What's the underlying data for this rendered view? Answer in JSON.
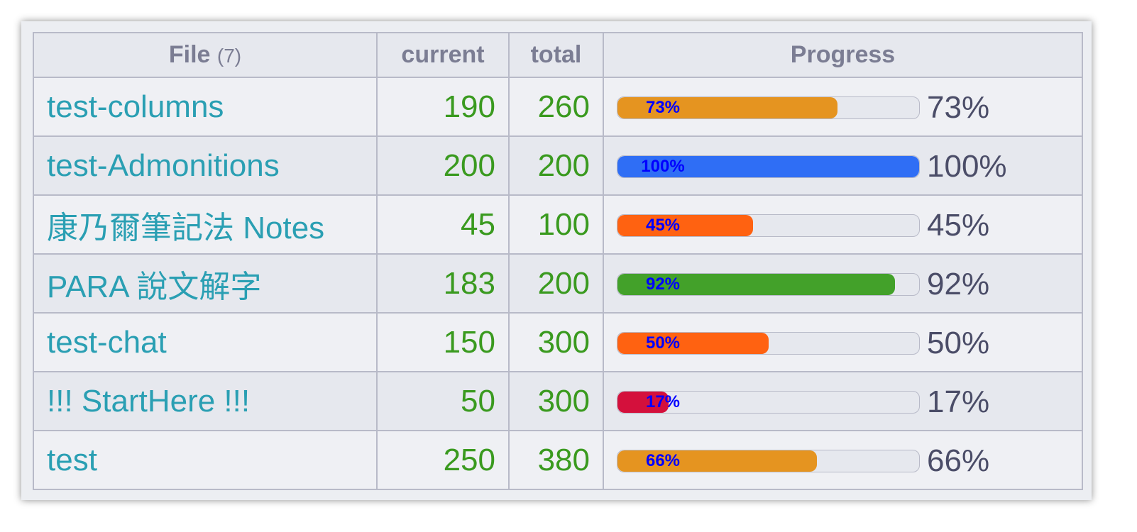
{
  "header": {
    "file": "File",
    "count": "(7)",
    "current": "current",
    "total": "total",
    "progress": "Progress"
  },
  "rows": [
    {
      "file": "test-columns",
      "current": 190,
      "total": 260,
      "progress": {
        "value": 73,
        "label": "73%"
      },
      "color": "#e59420"
    },
    {
      "file": "test-Admonitions",
      "current": 200,
      "total": 200,
      "progress": {
        "value": 100,
        "label": "100%"
      },
      "color": "#2f6ef5"
    },
    {
      "file": "康乃爾筆記法 Notes",
      "current": 45,
      "total": 100,
      "progress": {
        "value": 45,
        "label": "45%"
      },
      "color": "#ff6211"
    },
    {
      "file": "PARA 說文解字",
      "current": 183,
      "total": 200,
      "progress": {
        "value": 92,
        "label": "92%"
      },
      "color": "#43a12a"
    },
    {
      "file": "test-chat",
      "current": 150,
      "total": 300,
      "progress": {
        "value": 50,
        "label": "50%"
      },
      "color": "#ff6211"
    },
    {
      "file": "!!! StartHere !!!",
      "current": 50,
      "total": 300,
      "progress": {
        "value": 17,
        "label": "17%"
      },
      "color": "#d4103c"
    },
    {
      "file": "test",
      "current": 250,
      "total": 380,
      "progress": {
        "value": 66,
        "label": "66%"
      },
      "color": "#e59420"
    }
  ]
}
